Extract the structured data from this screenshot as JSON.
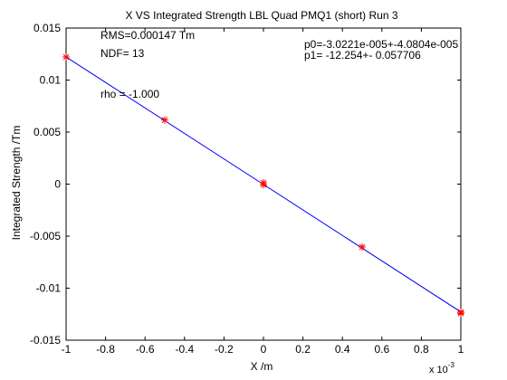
{
  "chart_data": {
    "type": "scatter",
    "title": "X VS Integrated Strength LBL Quad PMQ1 (short) Run 3",
    "xlabel": "X /m",
    "ylabel": "Integrated Strength /Tm",
    "x_multiplier_label": "x 10",
    "x_multiplier_exp": "-3",
    "xlim": [
      -1,
      1
    ],
    "ylim": [
      -0.015,
      0.015
    ],
    "x_ticks": [
      "-1",
      "-0.8",
      "-0.6",
      "-0.4",
      "-0.2",
      "0",
      "0.2",
      "0.4",
      "0.6",
      "0.8",
      "1"
    ],
    "y_ticks": [
      "0.015",
      "0.01",
      "0.005",
      "0",
      "-0.005",
      "-0.01",
      "-0.015"
    ],
    "grid": false,
    "points": [
      {
        "x": -1.0,
        "y": 0.01222
      },
      {
        "x": -0.5,
        "y": 0.00616
      },
      {
        "x": 0.0,
        "y": 0.00013
      },
      {
        "x": 0.0,
        "y": -6e-05
      },
      {
        "x": 0.5,
        "y": -0.00604
      },
      {
        "x": 1.0,
        "y": -0.0123
      },
      {
        "x": 1.0,
        "y": -0.01242
      }
    ],
    "fit_line": {
      "p0": -3.02e-05,
      "p1": -12.254,
      "x_scale": 0.001
    },
    "marker_color": "#ff0000",
    "line_color": "#0000ff",
    "annotations": {
      "rms": "RMS=0.000147 Tm",
      "ndf": "NDF=   13",
      "rho": "rho     = -1.000",
      "p0": "p0=-3.0221e-005+-4.0804e-005",
      "p1": "p1=  -12.254+- 0.057706"
    }
  }
}
